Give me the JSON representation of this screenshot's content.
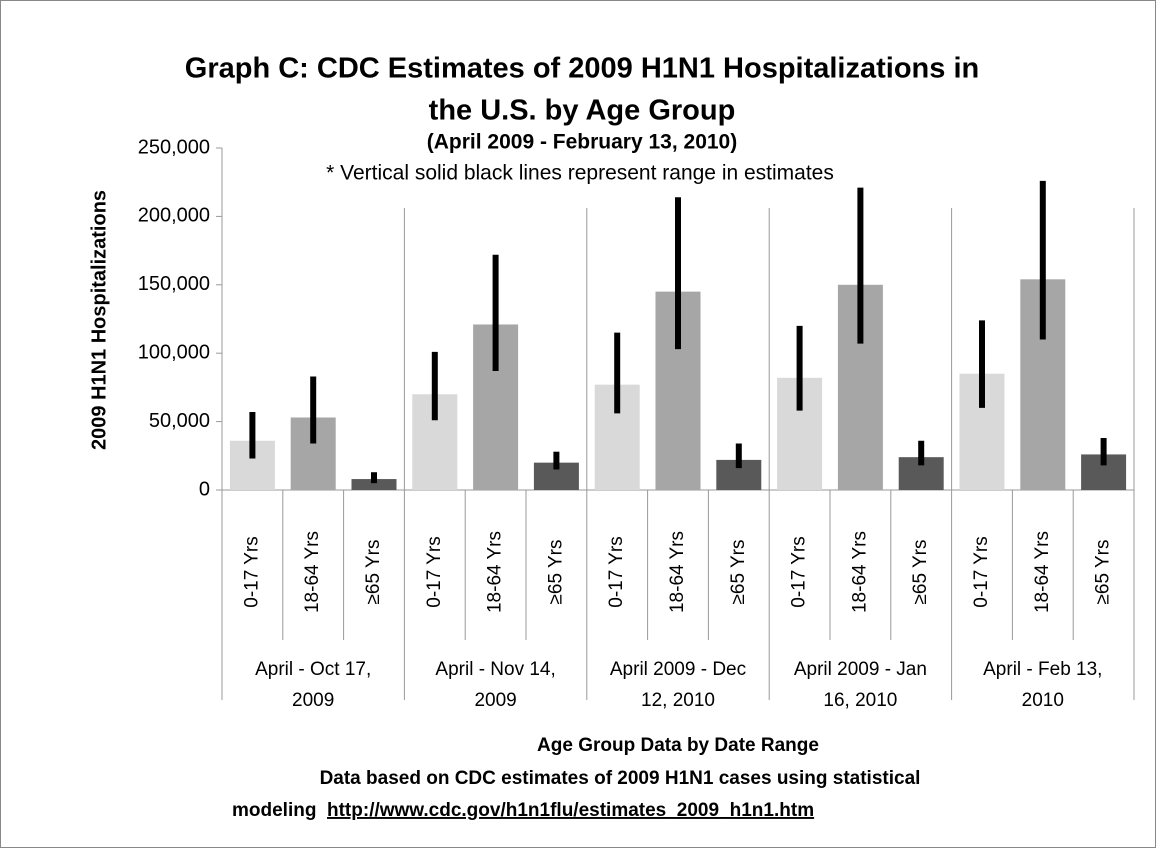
{
  "chart_data": {
    "type": "bar",
    "title": [
      "Graph C: CDC Estimates of 2009 H1N1 Hospitalizations in",
      "the U.S. by Age Group"
    ],
    "subtitle": "(April 2009 - February 13, 2010)",
    "annotation": "* Vertical solid black lines represent range in estimates",
    "ylabel": "2009 H1N1 Hospitalizations",
    "xlabel": "Age Group Data by Date Range",
    "footnote": [
      "Data based on CDC estimates of 2009 H1N1 cases using statistical",
      "modeling"
    ],
    "link": "http://www.cdc.gov/h1n1flu/estimates_2009_h1n1.htm",
    "groups": [
      [
        "April - Oct 17,",
        "2009"
      ],
      [
        "April - Nov 14,",
        "2009"
      ],
      [
        "April 2009 - Dec",
        "12, 2010"
      ],
      [
        "April 2009 - Jan",
        "16, 2010"
      ],
      [
        "April - Feb 13,",
        "2010"
      ]
    ],
    "series": [
      {
        "name": "0-17 Yrs",
        "color": "#d9d9d9",
        "values": [
          36000,
          70000,
          77000,
          82000,
          85000
        ],
        "low": [
          23000,
          51000,
          56000,
          58000,
          60000
        ],
        "high": [
          57000,
          101000,
          115000,
          120000,
          124000
        ]
      },
      {
        "name": "18-64 Yrs",
        "color": "#a6a6a6",
        "values": [
          53000,
          121000,
          145000,
          150000,
          154000
        ],
        "low": [
          34000,
          87000,
          103000,
          107000,
          110000
        ],
        "high": [
          83000,
          172000,
          214000,
          221000,
          226000
        ]
      },
      {
        "name": "≥65 Yrs",
        "color": "#595959",
        "values": [
          8000,
          20000,
          22000,
          24000,
          26000
        ],
        "low": [
          5000,
          15000,
          16000,
          18000,
          18000
        ],
        "high": [
          13000,
          28000,
          34000,
          36000,
          38000
        ]
      }
    ],
    "ylim": [
      0,
      250000
    ],
    "yticks": [
      0,
      {
        "value": 50000,
        "label": "50,000"
      },
      {
        "value": 100000,
        "label": "100,000"
      },
      {
        "value": 150000,
        "label": "150,000"
      },
      {
        "value": 200000,
        "label": "200,000"
      },
      {
        "value": 250000,
        "label": "250,000"
      }
    ],
    "error_color": "#000000"
  }
}
